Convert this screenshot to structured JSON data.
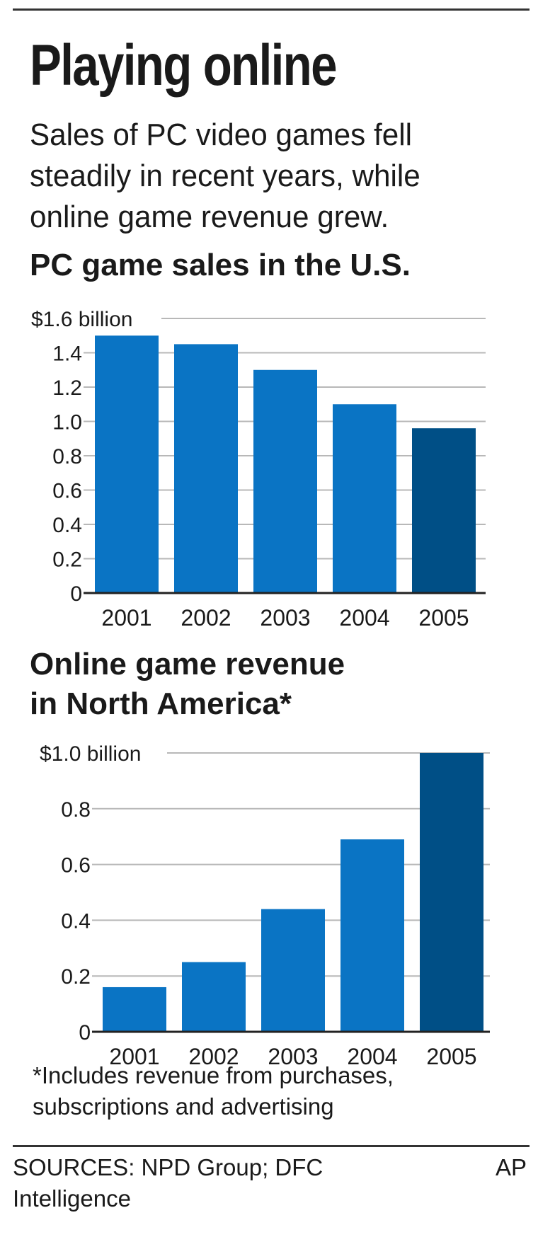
{
  "title": "Playing online",
  "subtitle": "Sales of PC video games fell steadily in recent years, while online game revenue grew.",
  "charts": [
    {
      "type": "bar",
      "title": "PC game sales in the U.S.",
      "categories": [
        "2001",
        "2002",
        "2003",
        "2004",
        "2005"
      ],
      "values": [
        1.5,
        1.45,
        1.3,
        1.1,
        0.96
      ],
      "ylim": [
        0,
        1.6
      ],
      "yticks": [
        {
          "value": 0,
          "label": "0"
        },
        {
          "value": 0.2,
          "label": "0.2"
        },
        {
          "value": 0.4,
          "label": "0.4"
        },
        {
          "value": 0.6,
          "label": "0.6"
        },
        {
          "value": 0.8,
          "label": "0.8"
        },
        {
          "value": 1.0,
          "label": "1.0"
        },
        {
          "value": 1.2,
          "label": "1.2"
        },
        {
          "value": 1.4,
          "label": "1.4"
        },
        {
          "value": 1.6,
          "label": "$1.6 billion"
        }
      ],
      "grid": true,
      "bar_color": "#0a74c4",
      "highlight_color": "#004f86",
      "highlight_index": 4
    },
    {
      "type": "bar",
      "title": "Online game revenue in North America*",
      "title_lines": [
        "Online game revenue",
        "in North America*"
      ],
      "categories": [
        "2001",
        "2002",
        "2003",
        "2004",
        "2005"
      ],
      "values": [
        0.16,
        0.25,
        0.44,
        0.69,
        1.0
      ],
      "ylim": [
        0,
        1.0
      ],
      "yticks": [
        {
          "value": 0,
          "label": "0"
        },
        {
          "value": 0.2,
          "label": "0.2"
        },
        {
          "value": 0.4,
          "label": "0.4"
        },
        {
          "value": 0.6,
          "label": "0.6"
        },
        {
          "value": 0.8,
          "label": "0.8"
        },
        {
          "value": 1.0,
          "label": "$1.0 billion"
        }
      ],
      "grid": true,
      "bar_color": "#0a74c4",
      "highlight_color": "#004f86",
      "highlight_index": 4
    }
  ],
  "chart_data": [
    {
      "type": "bar",
      "title": "PC game sales in the U.S.",
      "categories": [
        "2001",
        "2002",
        "2003",
        "2004",
        "2005"
      ],
      "values": [
        1.5,
        1.45,
        1.3,
        1.1,
        0.96
      ],
      "ylabel": "",
      "ylim": [
        0,
        1.6
      ]
    },
    {
      "type": "bar",
      "title": "Online game revenue in North America*",
      "categories": [
        "2001",
        "2002",
        "2003",
        "2004",
        "2005"
      ],
      "values": [
        0.16,
        0.25,
        0.44,
        0.69,
        1.0
      ],
      "ylabel": "",
      "ylim": [
        0,
        1.0
      ]
    }
  ],
  "footnote": "*Includes revenue from purchases, subscriptions and advertising",
  "sources": "SOURCES: NPD Group; DFC Intelligence",
  "credit": "AP"
}
